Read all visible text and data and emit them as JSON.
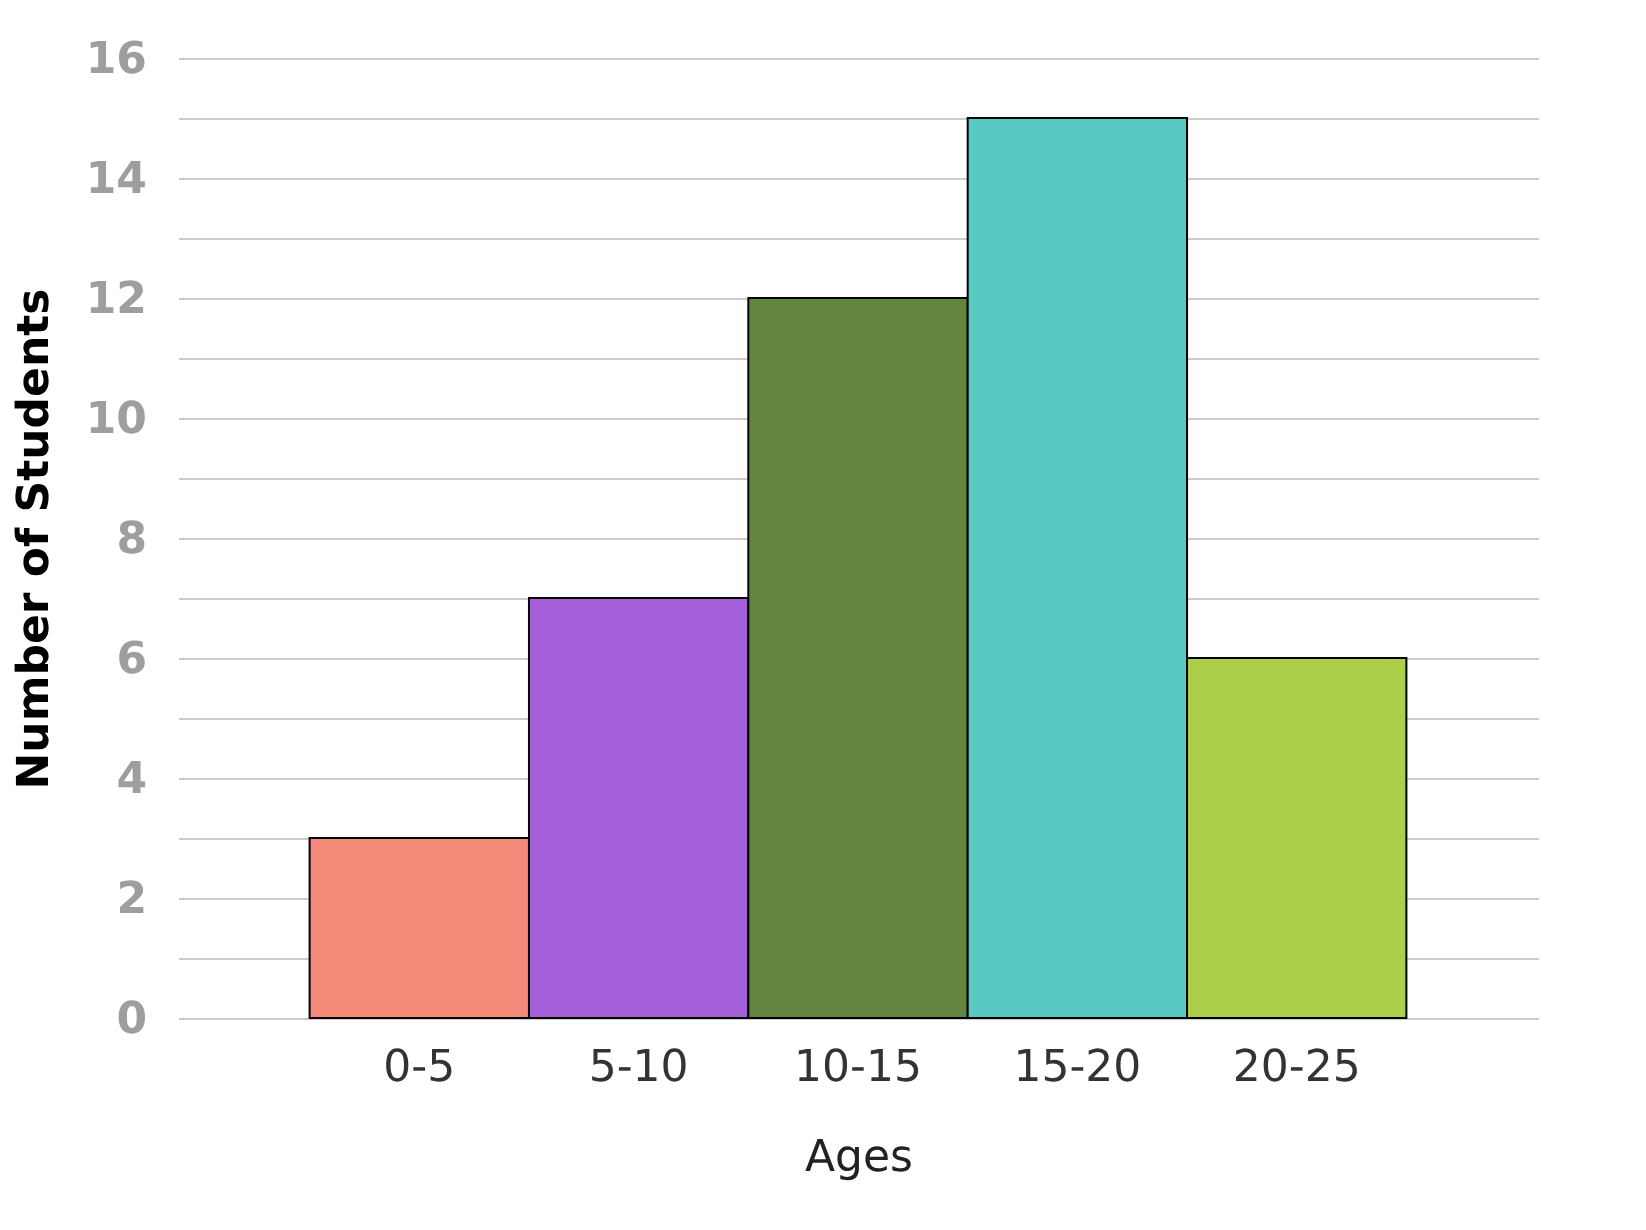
{
  "chart_data": {
    "type": "bar",
    "xlabel": "Ages",
    "ylabel": "Number of Students",
    "categories": [
      "0-5",
      "5-10",
      "10-15",
      "15-20",
      "20-25"
    ],
    "values": [
      3,
      7,
      12,
      15,
      6
    ],
    "colors": [
      "#f48b7a",
      "#a55fd8",
      "#638540",
      "#57cbc2",
      "#abcf4b"
    ],
    "ylim": [
      0,
      16
    ],
    "yticks": [
      0,
      {
        "value": 1,
        "label": null
      },
      2,
      {
        "value": 3,
        "label": null
      },
      4,
      {
        "value": 5,
        "label": null
      },
      6,
      {
        "value": 7,
        "label": null
      },
      8,
      {
        "value": 9,
        "label": null
      },
      10,
      {
        "value": 11,
        "label": null
      },
      12,
      {
        "value": 13,
        "label": null
      },
      14,
      {
        "value": 15,
        "label": null
      },
      16
    ],
    "grid": "y"
  }
}
